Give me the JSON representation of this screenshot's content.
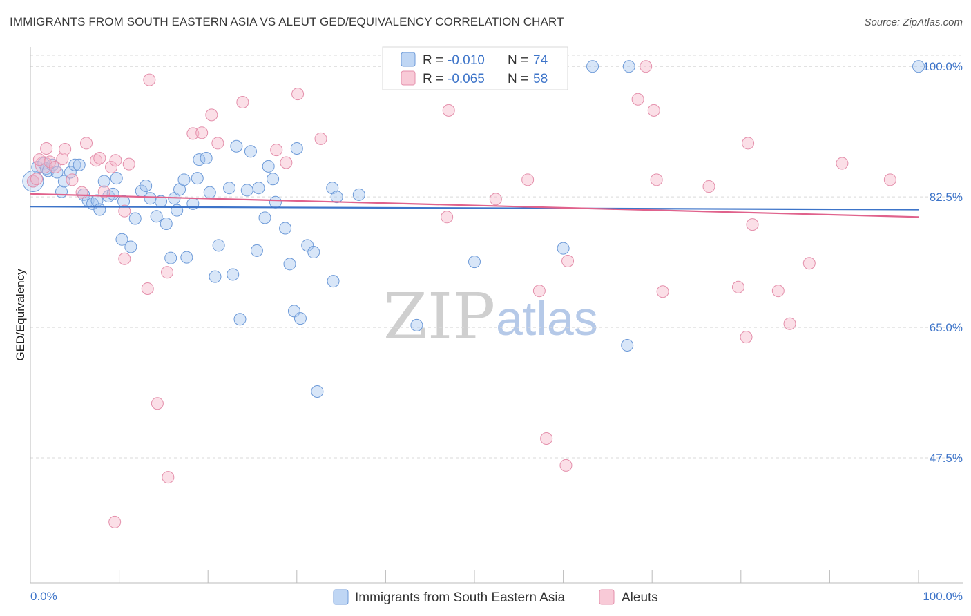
{
  "header": {
    "title": "IMMIGRANTS FROM SOUTH EASTERN ASIA VS ALEUT GED/EQUIVALENCY CORRELATION CHART",
    "source": "Source: ZipAtlas.com"
  },
  "watermark": {
    "zip": "ZIP",
    "atlas": "atlas"
  },
  "legend_top": {
    "rows": [
      {
        "r_label": "R = ",
        "r_value": "-0.010",
        "n_label": "N = ",
        "n_value": "74",
        "color": "#a9c8f0"
      },
      {
        "r_label": "R = ",
        "r_value": "-0.065",
        "n_label": "N = ",
        "n_value": "58",
        "color": "#f6b8c9"
      }
    ]
  },
  "legend_bottom": {
    "items": [
      {
        "label": "Immigrants from South Eastern Asia",
        "color": "#a9c8f0"
      },
      {
        "label": "Aleuts",
        "color": "#f6b8c9"
      }
    ]
  },
  "chart_data": {
    "type": "scatter",
    "title": "IMMIGRANTS FROM SOUTH EASTERN ASIA VS ALEUT GED/EQUIVALENCY CORRELATION CHART",
    "xlabel": "",
    "ylabel": "GED/Equivalency",
    "xlim": [
      0,
      100
    ],
    "ylim": [
      30,
      101.5
    ],
    "x_tick_labels": [
      "0.0%",
      "100.0%"
    ],
    "y_ticks": [
      47.5,
      65.0,
      82.5,
      100.0
    ],
    "y_tick_labels": [
      "47.5%",
      "65.0%",
      "82.5%",
      "100.0%"
    ],
    "grid": true,
    "colors": {
      "blue": "#3d74c9",
      "blue_fill": "#a9c8f0",
      "pink": "#e0628c",
      "pink_fill": "#f6b8c9"
    },
    "series": [
      {
        "name": "Immigrants from South Eastern Asia",
        "color": "#a9c8f0",
        "trend": {
          "x": [
            0,
            100
          ],
          "y": [
            81.2,
            80.8
          ]
        },
        "points": [
          [
            0.3,
            84.6
          ],
          [
            0.8,
            86.5
          ],
          [
            1.5,
            87.0
          ],
          [
            1.8,
            86.3
          ],
          [
            2.0,
            86.0
          ],
          [
            2.5,
            86.8
          ],
          [
            3.0,
            85.8
          ],
          [
            3.5,
            83.2
          ],
          [
            3.8,
            84.6
          ],
          [
            4.5,
            85.8
          ],
          [
            5.0,
            86.8
          ],
          [
            5.5,
            86.8
          ],
          [
            6.0,
            82.8
          ],
          [
            6.5,
            82.0
          ],
          [
            7.0,
            81.6
          ],
          [
            7.5,
            82.0
          ],
          [
            7.8,
            80.8
          ],
          [
            8.3,
            84.6
          ],
          [
            8.8,
            82.6
          ],
          [
            9.3,
            82.9
          ],
          [
            9.7,
            85.0
          ],
          [
            10.5,
            81.9
          ],
          [
            10.3,
            76.8
          ],
          [
            11.3,
            75.8
          ],
          [
            11.8,
            79.6
          ],
          [
            12.5,
            83.3
          ],
          [
            13.0,
            84.0
          ],
          [
            13.5,
            82.3
          ],
          [
            14.2,
            79.9
          ],
          [
            14.7,
            81.9
          ],
          [
            15.3,
            78.9
          ],
          [
            15.8,
            74.3
          ],
          [
            16.2,
            82.3
          ],
          [
            16.5,
            80.7
          ],
          [
            16.8,
            83.5
          ],
          [
            17.3,
            84.8
          ],
          [
            17.6,
            74.4
          ],
          [
            18.3,
            81.6
          ],
          [
            18.8,
            85.0
          ],
          [
            19.0,
            87.5
          ],
          [
            19.8,
            87.7
          ],
          [
            20.2,
            83.1
          ],
          [
            20.8,
            71.8
          ],
          [
            21.2,
            76.0
          ],
          [
            22.4,
            83.7
          ],
          [
            22.8,
            72.1
          ],
          [
            23.2,
            89.3
          ],
          [
            23.6,
            66.1
          ],
          [
            24.4,
            83.4
          ],
          [
            24.8,
            88.6
          ],
          [
            25.5,
            75.3
          ],
          [
            25.7,
            83.7
          ],
          [
            26.4,
            79.7
          ],
          [
            26.8,
            86.6
          ],
          [
            27.3,
            84.9
          ],
          [
            27.6,
            81.8
          ],
          [
            28.7,
            78.3
          ],
          [
            29.2,
            73.5
          ],
          [
            29.7,
            67.2
          ],
          [
            30.0,
            89.0
          ],
          [
            30.4,
            66.2
          ],
          [
            31.2,
            76.0
          ],
          [
            31.9,
            75.1
          ],
          [
            32.3,
            56.4
          ],
          [
            34.0,
            83.7
          ],
          [
            34.1,
            71.2
          ],
          [
            34.5,
            82.5
          ],
          [
            37.0,
            82.8
          ],
          [
            43.5,
            65.3
          ],
          [
            50.0,
            73.8
          ],
          [
            60.0,
            75.6
          ],
          [
            63.3,
            100.0
          ],
          [
            67.2,
            62.6
          ],
          [
            67.4,
            100.0
          ],
          [
            100.0,
            100.0
          ]
        ]
      },
      {
        "name": "Aleuts",
        "color": "#f6b8c9",
        "trend": {
          "x": [
            0,
            100
          ],
          "y": [
            82.9,
            79.8
          ]
        },
        "points": [
          [
            0.3,
            84.6
          ],
          [
            0.7,
            84.9
          ],
          [
            1.0,
            87.5
          ],
          [
            1.8,
            89.0
          ],
          [
            2.2,
            87.2
          ],
          [
            2.8,
            86.5
          ],
          [
            3.6,
            87.6
          ],
          [
            3.9,
            88.9
          ],
          [
            4.7,
            84.8
          ],
          [
            5.8,
            83.1
          ],
          [
            6.3,
            89.7
          ],
          [
            7.4,
            87.4
          ],
          [
            7.8,
            87.7
          ],
          [
            8.3,
            83.2
          ],
          [
            9.1,
            86.5
          ],
          [
            9.6,
            87.4
          ],
          [
            10.6,
            80.6
          ],
          [
            10.6,
            74.2
          ],
          [
            11.1,
            86.9
          ],
          [
            13.2,
            70.2
          ],
          [
            13.4,
            98.2
          ],
          [
            14.3,
            54.8
          ],
          [
            15.4,
            72.4
          ],
          [
            18.3,
            91.0
          ],
          [
            19.3,
            91.1
          ],
          [
            20.4,
            93.5
          ],
          [
            21.1,
            89.7
          ],
          [
            23.9,
            95.2
          ],
          [
            27.7,
            88.8
          ],
          [
            28.8,
            87.1
          ],
          [
            30.1,
            96.3
          ],
          [
            32.7,
            90.3
          ],
          [
            46.9,
            79.8
          ],
          [
            47.1,
            94.1
          ],
          [
            52.4,
            82.2
          ],
          [
            55.5,
            100.0
          ],
          [
            56.0,
            84.8
          ],
          [
            57.3,
            69.9
          ],
          [
            58.1,
            50.1
          ],
          [
            60.3,
            46.5
          ],
          [
            60.5,
            73.9
          ],
          [
            68.4,
            95.6
          ],
          [
            69.3,
            100.0
          ],
          [
            70.2,
            94.1
          ],
          [
            70.5,
            84.8
          ],
          [
            71.2,
            69.8
          ],
          [
            76.4,
            83.9
          ],
          [
            79.7,
            70.4
          ],
          [
            80.6,
            63.7
          ],
          [
            80.8,
            89.7
          ],
          [
            81.3,
            78.8
          ],
          [
            84.2,
            69.9
          ],
          [
            85.5,
            65.5
          ],
          [
            87.7,
            73.6
          ],
          [
            91.4,
            87.0
          ],
          [
            96.8,
            84.8
          ],
          [
            15.5,
            44.9
          ],
          [
            9.5,
            38.9
          ]
        ]
      }
    ]
  }
}
